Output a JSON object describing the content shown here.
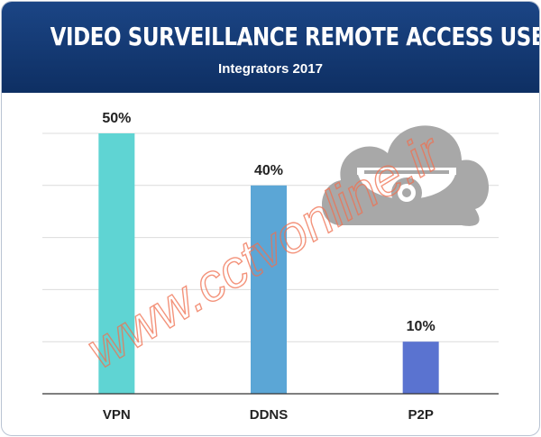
{
  "header": {
    "title": "VIDEO SURVEILLANCE REMOTE ACCESS USED",
    "subtitle": "Integrators 2017"
  },
  "watermark": {
    "text": "www.cctvonline.ir"
  },
  "colors": {
    "header_bg": "#173f7d",
    "grid": "#dcdcdc",
    "axis": "#333333",
    "cloud": "#a8a8a8"
  },
  "icons": [
    "cloud-camera-icon"
  ],
  "chart_data": {
    "type": "bar",
    "categories": [
      "VPN",
      "DDNS",
      "P2P"
    ],
    "values": [
      50,
      40,
      10
    ],
    "data_labels": [
      "50%",
      "40%",
      "10%"
    ],
    "colors": [
      "#5fd4d3",
      "#5ba6d6",
      "#5a73d0"
    ],
    "ylim": [
      0,
      50
    ],
    "grid": true,
    "title": "VIDEO SURVEILLANCE REMOTE ACCESS USED",
    "subtitle": "Integrators 2017",
    "xlabel": "",
    "ylabel": ""
  }
}
